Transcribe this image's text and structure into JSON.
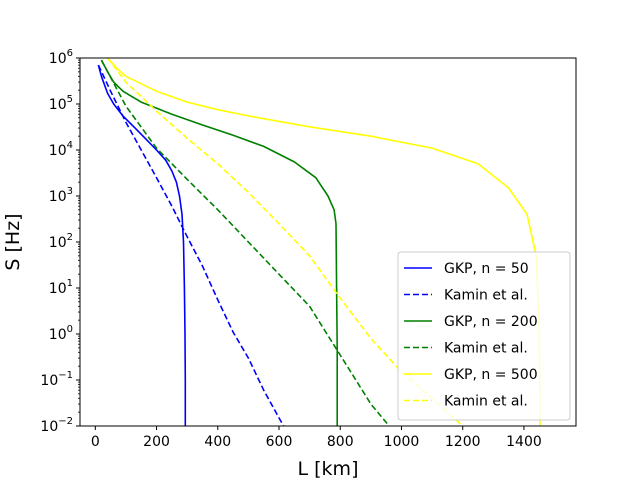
{
  "chart_data": {
    "type": "line",
    "title": "",
    "xlabel": "L [km]",
    "ylabel": "S [Hz]",
    "xscale": "linear",
    "yscale": "log",
    "xlim": [
      -50,
      1570
    ],
    "ylim": [
      0.01,
      1000000
    ],
    "xticks": [
      0,
      200,
      400,
      600,
      800,
      1000,
      1200,
      1400
    ],
    "xtick_labels": [
      "0",
      "200",
      "400",
      "600",
      "800",
      "1000",
      "1200",
      "1400"
    ],
    "yticks": [
      0.01,
      0.1,
      1,
      10,
      100,
      1000,
      10000,
      100000,
      1000000
    ],
    "ytick_labels": [
      {
        "base": "10",
        "exp": "−2"
      },
      {
        "base": "10",
        "exp": "−1"
      },
      {
        "base": "10",
        "exp": "0"
      },
      {
        "base": "10",
        "exp": "1"
      },
      {
        "base": "10",
        "exp": "2"
      },
      {
        "base": "10",
        "exp": "3"
      },
      {
        "base": "10",
        "exp": "4"
      },
      {
        "base": "10",
        "exp": "5"
      },
      {
        "base": "10",
        "exp": "6"
      }
    ],
    "grid": false,
    "legend_position": "lower-right",
    "series": [
      {
        "name": "GKP, n = 50",
        "color": "#0000ff",
        "style": "solid",
        "x": [
          10,
          20,
          40,
          60,
          90,
          130,
          170,
          200,
          230,
          250,
          265,
          275,
          283,
          288,
          291,
          293,
          294,
          294,
          294
        ],
        "y": [
          700000,
          400000,
          170000,
          100000,
          55000,
          30000,
          16000,
          10000,
          6000,
          3500,
          2000,
          1000,
          400,
          100,
          10,
          1,
          0.1,
          0.03,
          0.01
        ]
      },
      {
        "name": "Kamin et al.",
        "color": "#0000ff",
        "style": "dashed",
        "x": [
          10,
          50,
          100,
          150,
          200,
          250,
          300,
          350,
          400,
          450,
          500,
          550,
          600,
          615
        ],
        "y": [
          700000,
          190000,
          40000,
          10000,
          2500,
          600,
          130,
          30,
          5.5,
          1.1,
          0.3,
          0.06,
          0.015,
          0.01
        ]
      },
      {
        "name": "GKP, n = 200",
        "color": "#008000",
        "style": "solid",
        "x": [
          20,
          40,
          60,
          90,
          150,
          250,
          350,
          450,
          550,
          650,
          720,
          760,
          780,
          786,
          788,
          790,
          790,
          790
        ],
        "y": [
          900000,
          500000,
          300000,
          190000,
          110000,
          60000,
          35000,
          21000,
          12000,
          5500,
          2500,
          1000,
          500,
          250,
          10,
          0.5,
          0.05,
          0.01
        ]
      },
      {
        "name": "Kamin et al.",
        "color": "#008000",
        "style": "dashed",
        "x": [
          20,
          100,
          200,
          300,
          400,
          500,
          600,
          700,
          800,
          900,
          960
        ],
        "y": [
          900000,
          90000,
          11000,
          2300,
          500,
          100,
          20,
          4,
          0.35,
          0.03,
          0.01
        ]
      },
      {
        "name": "GKP, n = 500",
        "color": "#ffff00",
        "style": "solid",
        "x": [
          40,
          70,
          100,
          200,
          300,
          400,
          500,
          700,
          900,
          1100,
          1250,
          1350,
          1410,
          1440,
          1450,
          1452,
          1452
        ],
        "y": [
          1000000,
          600000,
          400000,
          190000,
          110000,
          75000,
          55000,
          32000,
          20000,
          11000,
          5000,
          1500,
          400,
          50,
          1,
          0.05,
          0.01
        ]
      },
      {
        "name": "Kamin et al.",
        "color": "#ffff00",
        "style": "dashed",
        "x": [
          40,
          100,
          200,
          300,
          400,
          500,
          600,
          700,
          800,
          900,
          1000,
          1100,
          1200
        ],
        "y": [
          1000000,
          300000,
          70000,
          18000,
          5000,
          1200,
          250,
          50,
          6,
          0.8,
          0.15,
          0.04,
          0.01
        ]
      }
    ]
  }
}
